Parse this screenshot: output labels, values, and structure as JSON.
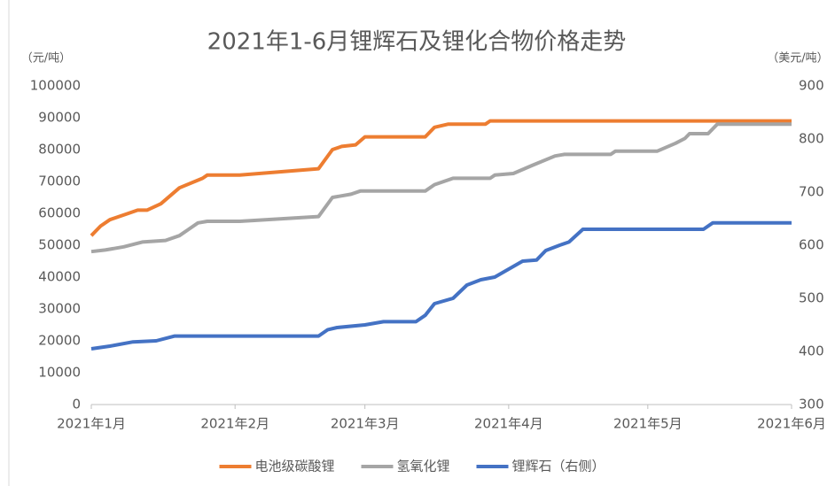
{
  "chart_data": {
    "type": "line",
    "title": "2021年1-6月锂辉石及锂化合物价格走势",
    "ylabel": "（元/吨）",
    "y2label": "（美元/吨）",
    "xlim": [
      0,
      151
    ],
    "xticks": [
      {
        "value": 0,
        "label": "2021年1月"
      },
      {
        "value": 31,
        "label": "2021年2月"
      },
      {
        "value": 59,
        "label": "2021年3月"
      },
      {
        "value": 90,
        "label": "2021年4月"
      },
      {
        "value": 120,
        "label": "2021年5月"
      },
      {
        "value": 151,
        "label": "2021年6月"
      }
    ],
    "ylim": [
      0,
      100000
    ],
    "yticks": [
      0,
      10000,
      20000,
      30000,
      40000,
      50000,
      60000,
      70000,
      80000,
      90000,
      100000
    ],
    "y2lim": [
      300,
      900
    ],
    "y2ticks": [
      300,
      400,
      500,
      600,
      700,
      800,
      900
    ],
    "grid": false,
    "legend": "bottom",
    "series": [
      {
        "name": "电池级碳酸锂",
        "color": "#ed7d31",
        "x": [
          0,
          2,
          4,
          8,
          10,
          12,
          15,
          19,
          24,
          25,
          32,
          49,
          52,
          54,
          57,
          59,
          72,
          74,
          77,
          85,
          86,
          151
        ],
        "values": [
          53000,
          56000,
          58000,
          60000,
          61000,
          61000,
          63000,
          68000,
          71000,
          72000,
          72000,
          74000,
          80000,
          81000,
          81500,
          84000,
          84000,
          87000,
          88000,
          88000,
          89000,
          89000
        ]
      },
      {
        "name": "氢氧化锂",
        "color": "#a5a5a5",
        "x": [
          0,
          3,
          7,
          11,
          16,
          19,
          21,
          23,
          25,
          32,
          49,
          52,
          56,
          58,
          72,
          74,
          78,
          86,
          87,
          91,
          95,
          100,
          102,
          112,
          113,
          122,
          126,
          128,
          129,
          133,
          135,
          151
        ],
        "values": [
          48000,
          48500,
          49500,
          51000,
          51500,
          53000,
          55000,
          57000,
          57500,
          57500,
          59000,
          65000,
          66000,
          67000,
          67000,
          69000,
          71000,
          71000,
          72000,
          72500,
          75000,
          78000,
          78500,
          78500,
          79500,
          79500,
          82000,
          83500,
          85000,
          85000,
          88000,
          88000
        ]
      },
      {
        "name": "锂辉石（右侧）",
        "color": "#4472c4",
        "axis": "y2",
        "x": [
          0,
          4,
          9,
          14,
          18,
          49,
          51,
          53,
          59,
          63,
          70,
          72,
          74,
          78,
          81,
          84,
          87,
          90,
          93,
          96,
          98,
          101,
          103,
          106,
          132,
          134,
          151
        ],
        "values": [
          405,
          410,
          418,
          420,
          429,
          429,
          441,
          445,
          450,
          456,
          456,
          468,
          490,
          500,
          525,
          535,
          540,
          555,
          570,
          572,
          590,
          600,
          606,
          630,
          630,
          642,
          642
        ]
      }
    ]
  }
}
